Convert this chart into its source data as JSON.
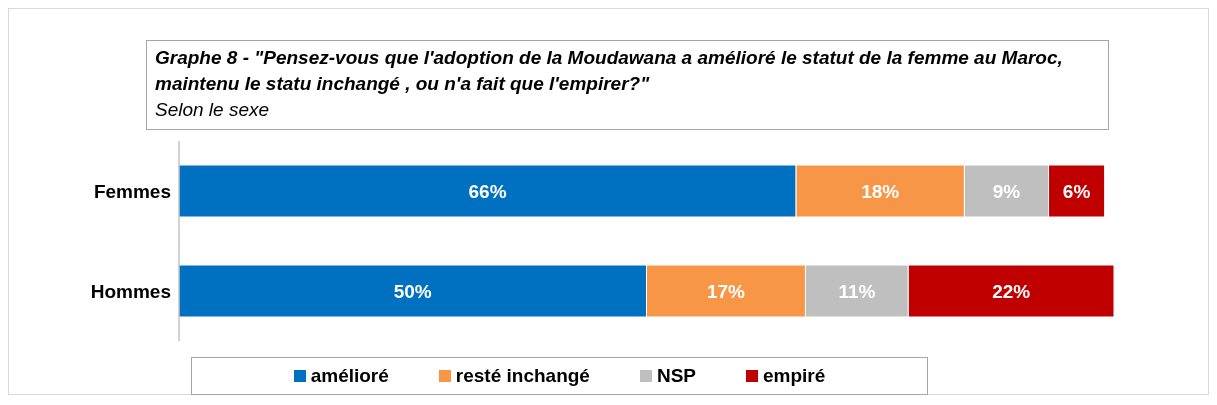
{
  "chart_data": {
    "type": "bar",
    "orientation": "horizontal",
    "stacked": true,
    "title": "Graphe 8 - \"Pensez-vous que l'adoption de  la Moudawana  a amélioré le statut de la femme au  Maroc, maintenu le statu inchangé , ou n'a fait que l'empirer?\"",
    "subtitle": "Selon le sexe",
    "categories": [
      "Femmes",
      "Hommes"
    ],
    "series": [
      {
        "name": "amélioré",
        "color": "#0070c0",
        "values": [
          66,
          50
        ],
        "value_labels": [
          "66%",
          "50%"
        ]
      },
      {
        "name": "resté inchangé",
        "color": "#f79646",
        "values": [
          18,
          17
        ],
        "value_labels": [
          "18%",
          "17%"
        ]
      },
      {
        "name": "NSP",
        "color": "#bfbfbf",
        "values": [
          9,
          11
        ],
        "value_labels": [
          "9%",
          "11%"
        ]
      },
      {
        "name": "empiré",
        "color": "#c00000",
        "values": [
          6,
          22
        ],
        "value_labels": [
          "6%",
          "22%"
        ]
      }
    ],
    "legend": "bottom",
    "tick_labels": "y"
  }
}
